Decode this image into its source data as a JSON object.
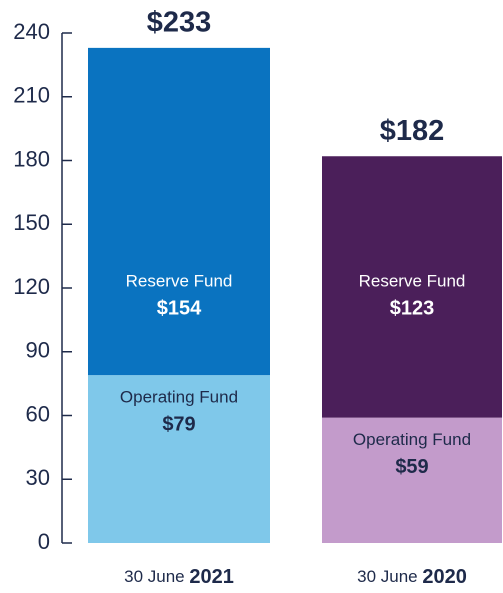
{
  "chart_data": {
    "type": "stacked-bar",
    "categories": [
      {
        "day": "30 June",
        "year": "2021"
      },
      {
        "day": "30 June",
        "year": "2020"
      }
    ],
    "series": [
      {
        "name": "Operating Fund",
        "colors": [
          "#7fc8ea",
          "#c39bcb"
        ],
        "values": [
          79,
          59
        ],
        "value_labels": [
          "$79",
          "$59"
        ]
      },
      {
        "name": "Reserve Fund",
        "colors": [
          "#0a73c0",
          "#4b1f5a"
        ],
        "values": [
          154,
          123
        ],
        "value_labels": [
          "$154",
          "$123"
        ]
      }
    ],
    "totals": [
      233,
      182
    ],
    "total_labels": [
      "$233",
      "$182"
    ],
    "ylim": [
      0,
      240
    ],
    "yticks": [
      0,
      30,
      60,
      90,
      120,
      150,
      180,
      210,
      240
    ]
  }
}
